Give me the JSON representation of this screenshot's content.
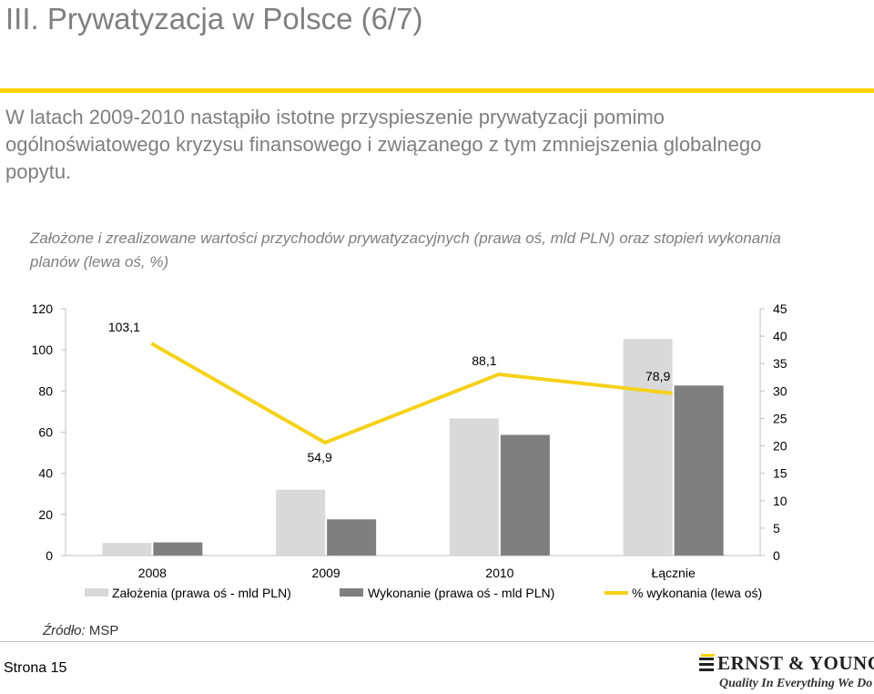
{
  "page": {
    "title": "III. Prywatyzacja w Polsce (6/7)",
    "lead": "W latach 2009-2010 nastąpiło istotne przyspieszenie prywatyzacji pomimo ogólnoświatowego kryzysu finansowego i związanego z tym zmniejszenia globalnego popytu.",
    "source_label": "Źródło:",
    "source_value": "MSP",
    "page_label": "Strona 15",
    "accent_color": "#ffd200"
  },
  "logo": {
    "name": "ERNST & YOUNG",
    "tagline": "Quality In Everything We Do"
  },
  "chart_data": {
    "type": "bar",
    "title": "Założone i zrealizowane wartości przychodów prywatyzacyjnych (prawa oś, mld PLN) oraz stopień wykonania planów (lewa oś, %)",
    "categories": [
      "2008",
      "2009",
      "2010",
      "Łącznie"
    ],
    "left_axis": {
      "ylim": [
        0,
        120
      ],
      "ticks": [
        "0",
        "20",
        "40",
        "60",
        "80",
        "100",
        "120"
      ]
    },
    "right_axis": {
      "ylim": [
        0,
        45
      ],
      "ticks": [
        "0",
        "5",
        "10",
        "15",
        "20",
        "25",
        "30",
        "35",
        "40",
        "45"
      ]
    },
    "series": [
      {
        "name": "Założenia (prawa oś - mld PLN)",
        "type": "bar",
        "axis": "right",
        "color": "#d9d9d9",
        "values": [
          2.3,
          12.0,
          25.0,
          39.5
        ]
      },
      {
        "name": "Wykonanie (prawa oś - mld PLN)",
        "type": "bar",
        "axis": "right",
        "color": "#7f7f7f",
        "values": [
          2.4,
          6.6,
          22.0,
          31.0
        ]
      },
      {
        "name": "% wykonania (lewa oś)",
        "type": "line",
        "axis": "left",
        "color": "#f5d11a",
        "values": [
          103.1,
          54.9,
          88.1,
          78.9
        ],
        "labels": [
          "103,1",
          "54,9",
          "88,1",
          "78,9"
        ]
      }
    ],
    "grid": false,
    "legend": "bottom"
  }
}
